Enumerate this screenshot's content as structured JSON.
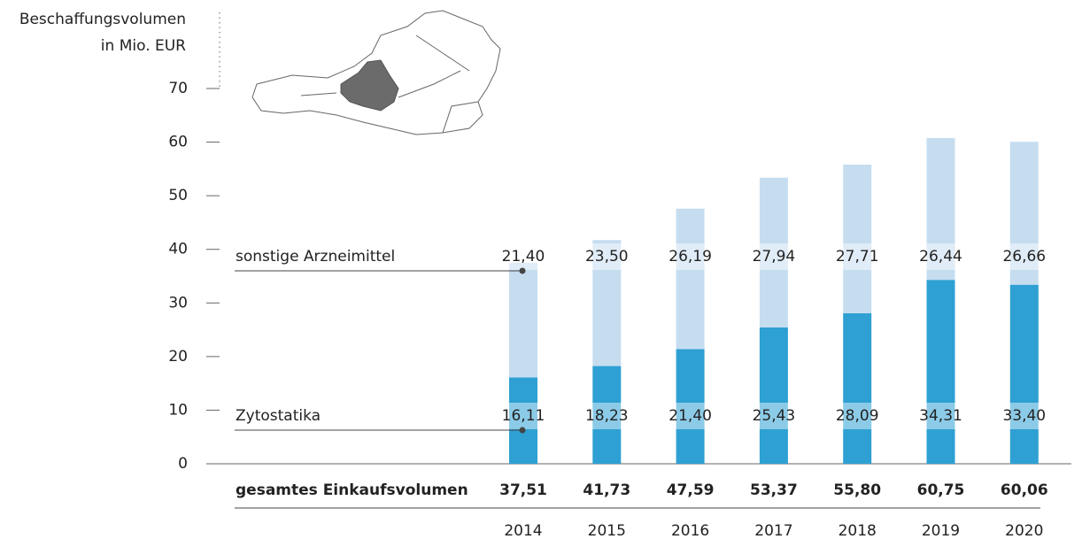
{
  "chart_data": {
    "type": "stacked-bar",
    "ylabel": [
      "Beschaffungsvolumen",
      "in Mio. EUR"
    ],
    "categories": [
      "2014",
      "2015",
      "2016",
      "2017",
      "2018",
      "2019",
      "2020"
    ],
    "series": [
      {
        "name": "Zytostatika",
        "color": "#2ea0d3",
        "values": [
          16.11,
          18.23,
          21.4,
          25.43,
          28.09,
          34.31,
          33.4
        ],
        "value_labels": [
          "16,11",
          "18,23",
          "21,40",
          "25,43",
          "28,09",
          "34,31",
          "33,40"
        ]
      },
      {
        "name": "sonstige Arzneimittel",
        "color": "#c6ddf0",
        "values": [
          21.4,
          23.5,
          26.19,
          27.94,
          27.71,
          26.44,
          26.66
        ],
        "value_labels": [
          "21,40",
          "23,50",
          "26,19",
          "27,94",
          "27,71",
          "26,44",
          "26,66"
        ]
      }
    ],
    "totals": {
      "name": "gesamtes Einkaufsvolumen",
      "values": [
        37.51,
        41.73,
        47.59,
        53.37,
        55.8,
        60.75,
        60.06
      ],
      "value_labels": [
        "37,51",
        "41,73",
        "47,59",
        "53,37",
        "55,80",
        "60,75",
        "60,06"
      ]
    },
    "ylim": [
      0,
      70
    ],
    "yticks": [
      0,
      10,
      20,
      30,
      40,
      50,
      60,
      70
    ]
  }
}
